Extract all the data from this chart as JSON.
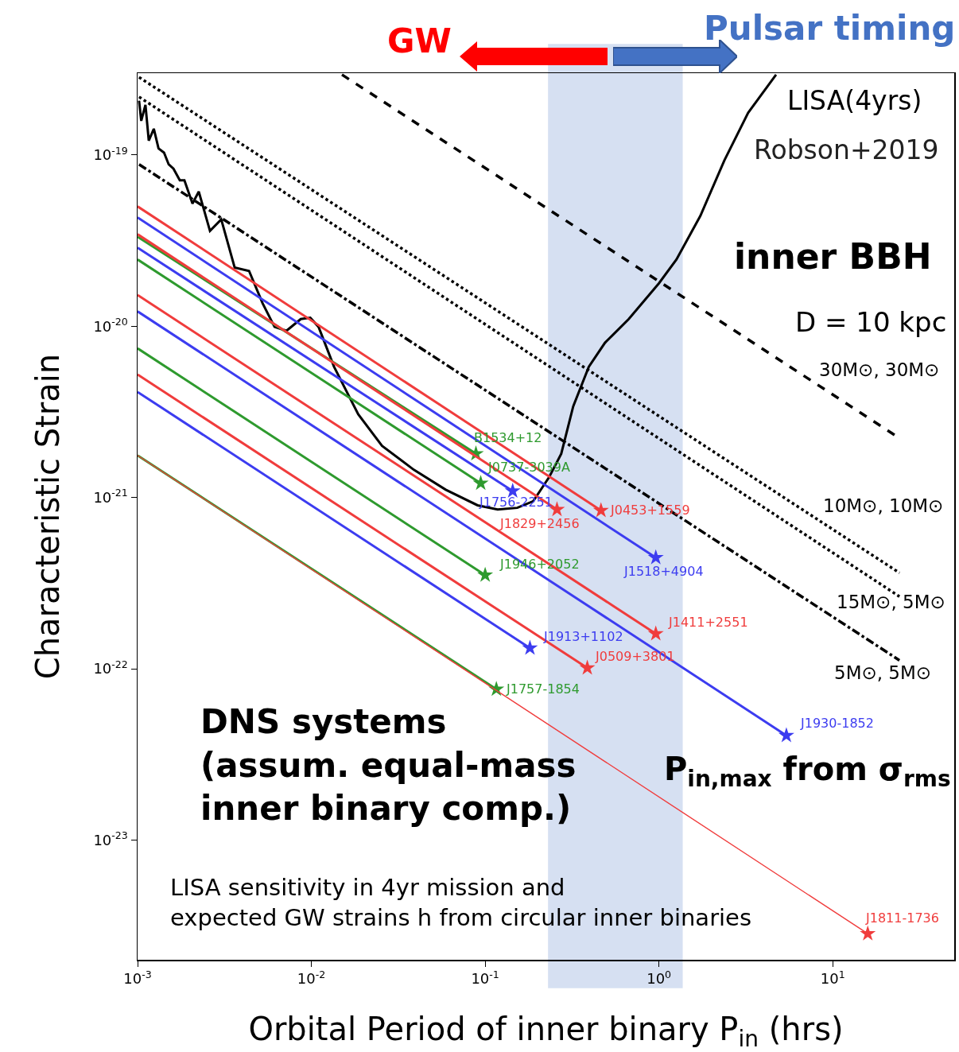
{
  "chart_data": {
    "type": "line",
    "xlabel": "Orbital Period of inner binary P$_{in}$ (hrs)",
    "ylabel": "Characteristic Strain",
    "log": "xy",
    "grid": false,
    "xlim": [
      0.001,
      50
    ],
    "ylim": [
      2e-24,
      3e-19
    ],
    "xticks": [
      {
        "value": 0.001,
        "label": "10$^{-3}$"
      },
      {
        "value": 0.01,
        "label": "10$^{-2}$"
      },
      {
        "value": 0.1,
        "label": "10$^{-1}$"
      },
      {
        "value": 1,
        "label": "10$^{0}$"
      },
      {
        "value": 10,
        "label": "10$^{1}$"
      }
    ],
    "yticks": [
      {
        "value": 1e-23,
        "label": "10$^{-23}$"
      },
      {
        "value": 1e-22,
        "label": "10$^{-22}$"
      },
      {
        "value": 1e-21,
        "label": "10$^{-21}$"
      },
      {
        "value": 1e-20,
        "label": "10$^{-20}$"
      },
      {
        "value": 1e-19,
        "label": "10$^{-19}$"
      }
    ],
    "bands": [
      {
        "axis": "x",
        "from": 0.23,
        "to": 1.37,
        "color": "#d6e0f2"
      }
    ],
    "annotations": [
      "GW",
      "Pulsar timing",
      "Robson+2019",
      "inner BBH",
      "D = 10 kpc",
      "DNS systems\n(assum. equal-mass\ninner binary comp.)",
      "LISA sensitivity in 4yr mission and\nexpected GW strains h from circular inner binaries",
      "P$_{in,max}$ from σ$_{rms}$"
    ],
    "series": [
      {
        "name": "LISA(4yrs)",
        "color": "#000000",
        "line_style": "solid",
        "marker": "none",
        "x": [
          0.00102,
          0.00105,
          0.00111,
          0.00116,
          0.00124,
          0.00132,
          0.00142,
          0.00151,
          0.00161,
          0.00175,
          0.00186,
          0.00207,
          0.00225,
          0.00261,
          0.00303,
          0.00362,
          0.00438,
          0.00524,
          0.00614,
          0.00719,
          0.00869,
          0.00986,
          0.011,
          0.0135,
          0.0186,
          0.0255,
          0.0389,
          0.0593,
          0.0904,
          0.118,
          0.153,
          0.189,
          0.233,
          0.274,
          0.321,
          0.395,
          0.489,
          0.67,
          1.0,
          1.26,
          1.73,
          2.38,
          3.26,
          4.72
        ],
        "values": [
          2.07e-19,
          1.58e-19,
          1.96e-19,
          1.21e-19,
          1.42e-19,
          1.09e-19,
          1.03e-19,
          8.8e-20,
          8.3e-20,
          7.1e-20,
          7.1e-20,
          5.2e-20,
          6.1e-20,
          3.6e-20,
          4.2e-20,
          2.2e-20,
          2.1e-20,
          1.36e-20,
          9.9e-21,
          9.4e-21,
          1.1e-20,
          1.12e-20,
          9.9e-21,
          5.8e-21,
          3.06e-21,
          2e-21,
          1.45e-21,
          1.11e-21,
          9e-22,
          8.5e-22,
          8.7e-22,
          9.5e-22,
          1.31e-21,
          1.8e-21,
          3.4e-21,
          5.8e-21,
          8e-21,
          1.1e-20,
          1.78e-20,
          2.45e-20,
          4.4e-20,
          9.3e-20,
          1.76e-19,
          2.94e-19
        ]
      },
      {
        "name": "30M⊙, 30M⊙",
        "color": "#000000",
        "line_style": "dashed",
        "marker": "none",
        "x": [
          0.015,
          24.2
        ],
        "values": [
          2.94e-19,
          2.22e-21
        ]
      },
      {
        "name": "10M⊙, 10M⊙",
        "color": "#000000",
        "line_style": "dotted",
        "marker": "none",
        "x": [
          0.00102,
          24.2
        ],
        "values": [
          2.84e-19,
          3.63e-22
        ]
      },
      {
        "name": "15M⊙, 5M⊙",
        "color": "#000000",
        "line_style": "dotted",
        "marker": "none",
        "x": [
          0.00102,
          24.2
        ],
        "values": [
          2.18e-19,
          2.64e-22
        ]
      },
      {
        "name": "5M⊙, 5M⊙",
        "color": "#000000",
        "line_style": "dashdot",
        "marker": "none",
        "x": [
          0.00102,
          24.2
        ],
        "values": [
          8.8e-20,
          1.12e-22
        ]
      },
      {
        "name": "B1534+12",
        "color": "#2e9a2e",
        "line_style": "solid",
        "marker": "star",
        "x": [
          0.001,
          0.0885
        ],
        "values": [
          3.33e-20,
          1.8e-21
        ]
      },
      {
        "name": "J0737-3039A",
        "color": "#2e9a2e",
        "line_style": "solid",
        "marker": "star",
        "x": [
          0.001,
          0.0943
        ],
        "values": [
          2.45e-20,
          1.21e-21
        ]
      },
      {
        "name": "J1756-2251",
        "color": "#3c3cf0",
        "line_style": "solid",
        "marker": "star",
        "x": [
          0.001,
          0.144
        ],
        "values": [
          2.87e-20,
          1.09e-21
        ]
      },
      {
        "name": "J1829+2456",
        "color": "#f03c3c",
        "line_style": "solid",
        "marker": "star",
        "x": [
          0.001,
          0.259
        ],
        "values": [
          3.44e-20,
          8.5e-22
        ]
      },
      {
        "name": "J0453+1559",
        "color": "#f03c3c",
        "line_style": "solid",
        "marker": "star",
        "x": [
          0.001,
          0.464
        ],
        "values": [
          5e-20,
          8.4e-22
        ]
      },
      {
        "name": "J1518+4904",
        "color": "#3c3cf0",
        "line_style": "solid",
        "marker": "star",
        "x": [
          0.001,
          0.959
        ],
        "values": [
          4.31e-20,
          4.45e-22
        ]
      },
      {
        "name": "J1946+2052",
        "color": "#2e9a2e",
        "line_style": "solid",
        "marker": "star",
        "x": [
          0.001,
          0.1
        ],
        "values": [
          7.42e-21,
          3.52e-22
        ]
      },
      {
        "name": "J1411+2551",
        "color": "#f03c3c",
        "line_style": "solid",
        "marker": "star",
        "x": [
          0.001,
          0.959
        ],
        "values": [
          1.52e-20,
          1.6e-22
        ]
      },
      {
        "name": "J1913+1102",
        "color": "#3c3cf0",
        "line_style": "solid",
        "marker": "star",
        "x": [
          0.001,
          0.181
        ],
        "values": [
          4.13e-21,
          1.32e-22
        ]
      },
      {
        "name": "J0509+3801",
        "color": "#f03c3c",
        "line_style": "solid",
        "marker": "star",
        "x": [
          0.001,
          0.387
        ],
        "values": [
          5.22e-21,
          1.01e-22
        ]
      },
      {
        "name": "J1757-1854",
        "color": "#2e9a2e",
        "line_style": "solid",
        "marker": "star",
        "x": [
          0.001,
          0.116
        ],
        "values": [
          1.76e-21,
          7.6e-23
        ]
      },
      {
        "name": "J1930-1852",
        "color": "#3c3cf0",
        "line_style": "solid",
        "marker": "star",
        "x": [
          0.001,
          5.41
        ],
        "values": [
          1.22e-20,
          4.08e-23
        ]
      },
      {
        "name": "J1811-1736",
        "color": "#f03c3c",
        "line_style": "solid",
        "marker": "star",
        "x": [
          0.001,
          15.9
        ],
        "values": [
          1.76e-21,
          2.84e-24
        ]
      }
    ]
  }
}
